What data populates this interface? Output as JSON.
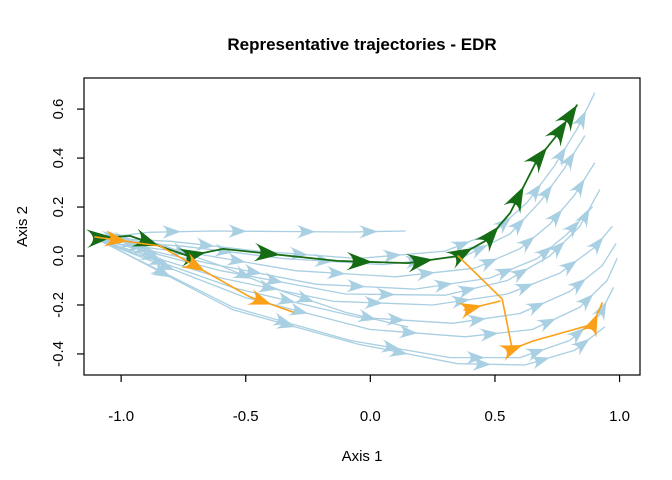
{
  "title": "Representative trajectories - EDR",
  "axes": {
    "xlabel": "Axis 1",
    "ylabel": "Axis 2",
    "x_tick_labels": [
      "-1.0",
      "-0.5",
      "0.0",
      "0.5",
      "1.0"
    ],
    "x_tick_values": [
      -1.0,
      -0.5,
      0.0,
      0.5,
      1.0
    ],
    "y_tick_labels": [
      "-0.4",
      "-0.2",
      "0.0",
      "0.2",
      "0.4",
      "0.6"
    ],
    "y_tick_values": [
      -0.4,
      -0.2,
      0.0,
      0.2,
      0.4,
      0.6
    ]
  },
  "colors": {
    "background_flow": "#A9CFE2",
    "highlight_green": "#156C15",
    "highlight_orange": "#FCA017",
    "axis": "#000000"
  },
  "chart_data": {
    "type": "line",
    "subtype": "trajectory-flow-plot",
    "title": "Representative trajectories - EDR",
    "xlabel": "Axis 1",
    "ylabel": "Axis 2",
    "xlim": [
      -1.149,
      1.082
    ],
    "ylim": [
      -0.486,
      0.727
    ],
    "grid": false,
    "legend": "none",
    "series": [
      {
        "name": "background-flow",
        "color": "#A9CFE2",
        "stroke_width": 1.3,
        "head_length": 19,
        "paths": [
          {
            "points": [
              [
                -1.11,
                0.07
              ],
              [
                -0.89,
                0.097
              ],
              [
                -0.63,
                0.102
              ],
              [
                -0.36,
                0.1
              ],
              [
                -0.08,
                0.098
              ],
              [
                0.14,
                0.102
              ]
            ]
          },
          {
            "points": [
              [
                -1.11,
                0.075
              ],
              [
                -0.8,
                0.06
              ],
              [
                -0.45,
                0.02
              ],
              [
                -0.05,
                -0.01
              ],
              [
                0.3,
                0.02
              ],
              [
                0.5,
                0.1
              ],
              [
                0.63,
                0.22
              ],
              [
                0.74,
                0.37
              ],
              [
                0.83,
                0.52
              ],
              [
                0.9,
                0.665
              ]
            ]
          },
          {
            "points": [
              [
                -1.108,
                0.065
              ],
              [
                -0.75,
                0.04
              ],
              [
                -0.35,
                -0.01
              ],
              [
                0.05,
                -0.035
              ],
              [
                0.38,
                0.0
              ],
              [
                0.56,
                0.09
              ],
              [
                0.68,
                0.22
              ],
              [
                0.78,
                0.36
              ],
              [
                0.86,
                0.49
              ]
            ]
          },
          {
            "points": [
              [
                -1.1,
                0.06
              ],
              [
                -0.7,
                0.01
              ],
              [
                -0.3,
                -0.06
              ],
              [
                0.1,
                -0.085
              ],
              [
                0.42,
                -0.05
              ],
              [
                0.6,
                0.03
              ],
              [
                0.72,
                0.13
              ],
              [
                0.82,
                0.25
              ],
              [
                0.9,
                0.38
              ]
            ]
          },
          {
            "points": [
              [
                -1.1,
                0.07
              ],
              [
                -0.65,
                -0.03
              ],
              [
                -0.22,
                -0.115
              ],
              [
                0.18,
                -0.135
              ],
              [
                0.48,
                -0.09
              ],
              [
                0.67,
                -0.01
              ],
              [
                0.79,
                0.09
              ],
              [
                0.89,
                0.2
              ]
            ]
          },
          {
            "points": [
              [
                -1.1,
                0.072
              ],
              [
                -0.6,
                -0.06
              ],
              [
                -0.1,
                -0.155
              ],
              [
                0.3,
                -0.16
              ],
              [
                0.55,
                -0.1
              ],
              [
                0.72,
                0.0
              ],
              [
                0.84,
                0.12
              ],
              [
                0.92,
                0.27
              ]
            ]
          },
          {
            "points": [
              [
                -1.09,
                0.065
              ],
              [
                -0.6,
                -0.09
              ],
              [
                -0.15,
                -0.185
              ],
              [
                0.25,
                -0.2
              ],
              [
                0.55,
                -0.155
              ],
              [
                0.76,
                -0.07
              ],
              [
                0.9,
                0.035
              ],
              [
                0.97,
                0.12
              ]
            ]
          },
          {
            "points": [
              [
                -1.08,
                0.06
              ],
              [
                -0.55,
                -0.13
              ],
              [
                -0.05,
                -0.25
              ],
              [
                0.33,
                -0.275
              ],
              [
                0.6,
                -0.235
              ],
              [
                0.8,
                -0.145
              ],
              [
                0.93,
                -0.04
              ],
              [
                0.985,
                0.05
              ]
            ]
          },
          {
            "points": [
              [
                -1.07,
                0.055
              ],
              [
                -0.5,
                -0.17
              ],
              [
                0.0,
                -0.3
              ],
              [
                0.38,
                -0.33
              ],
              [
                0.65,
                -0.3
              ],
              [
                0.84,
                -0.21
              ],
              [
                0.95,
                -0.1
              ],
              [
                0.99,
                -0.01
              ]
            ]
          },
          {
            "points": [
              [
                -1.06,
                0.05
              ],
              [
                -0.55,
                -0.21
              ],
              [
                -0.08,
                -0.345
              ],
              [
                0.32,
                -0.415
              ],
              [
                0.6,
                -0.415
              ],
              [
                0.8,
                -0.345
              ],
              [
                0.92,
                -0.24
              ],
              [
                0.975,
                -0.13
              ]
            ]
          },
          {
            "points": [
              [
                -1.05,
                0.045
              ],
              [
                -0.55,
                -0.22
              ],
              [
                -0.05,
                -0.36
              ],
              [
                0.35,
                -0.44
              ],
              [
                0.62,
                -0.445
              ],
              [
                0.82,
                -0.385
              ],
              [
                0.94,
                -0.29
              ]
            ]
          },
          {
            "points": [
              [
                -1.1,
                0.08
              ],
              [
                -0.85,
                0.05
              ],
              [
                -0.6,
                -0.04
              ],
              [
                -0.35,
                -0.145
              ],
              [
                -0.1,
                -0.23
              ],
              [
                0.15,
                -0.29
              ]
            ]
          }
        ]
      },
      {
        "name": "representative-trajectory-green",
        "color": "#156C15",
        "stroke_width": 1.8,
        "head_length": 26,
        "paths": [
          {
            "points": [
              [
                -1.105,
                0.073
              ],
              [
                -0.964,
                0.082
              ],
              [
                -0.731,
                0.0
              ],
              [
                -0.591,
                0.029
              ],
              [
                -0.134,
                -0.02
              ],
              [
                0.151,
                -0.029
              ],
              [
                0.352,
                0.0
              ],
              [
                0.468,
                0.065
              ],
              [
                0.561,
                0.176
              ],
              [
                0.669,
                0.392
              ],
              [
                0.749,
                0.494
              ],
              [
                0.829,
                0.616
              ]
            ],
            "end_head": true
          }
        ]
      },
      {
        "name": "representative-trajectory-orange",
        "color": "#FCA017",
        "stroke_width": 1.6,
        "head_length": 23,
        "paths": [
          {
            "points": [
              [
                -1.105,
                0.078
              ],
              [
                -0.844,
                0.041
              ],
              [
                -0.483,
                -0.167
              ],
              [
                -0.31,
                -0.229
              ]
            ]
          },
          {
            "points": [
              [
                0.352,
                0.0
              ],
              [
                0.529,
                -0.176
              ],
              [
                0.569,
                -0.38
              ],
              [
                0.653,
                -0.347
              ],
              [
                0.894,
                -0.278
              ],
              [
                0.93,
                -0.192
              ]
            ],
            "head_segments": [
              2,
              4
            ]
          },
          {
            "points": [
              [
                0.376,
                -0.22
              ],
              [
                0.52,
                -0.184
              ]
            ],
            "head_segments": [
              0
            ]
          }
        ]
      }
    ]
  }
}
